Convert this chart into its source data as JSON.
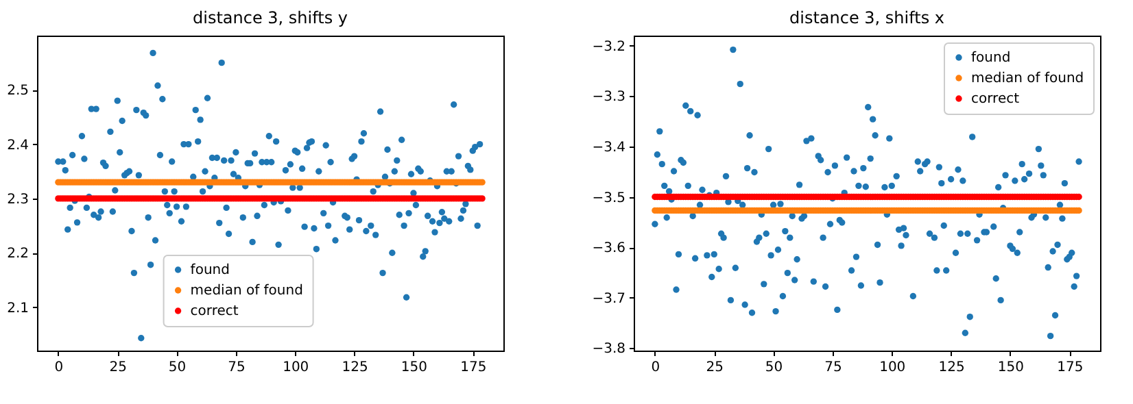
{
  "chart_data": [
    {
      "type": "scatter",
      "title": "distance 3, shifts y",
      "xlim": [
        -8.95,
        187.95
      ],
      "xticks": [
        0,
        25,
        50,
        75,
        100,
        125,
        150,
        175
      ],
      "ylim": [
        2.02,
        2.6
      ],
      "yticks": [
        2.1,
        2.2,
        2.3,
        2.4,
        2.5
      ],
      "grid": false,
      "legend": "bottom",
      "marker": "circle",
      "series": [
        {
          "name": "found",
          "color": "#1f77b4",
          "x": [
            0,
            2,
            3,
            4,
            5,
            6,
            7,
            8,
            10,
            11,
            12,
            13,
            14,
            15,
            16,
            17,
            18,
            19,
            20,
            22,
            23,
            24,
            25,
            26,
            27,
            28,
            29,
            30,
            31,
            32,
            33,
            34,
            35,
            36,
            37,
            38,
            39,
            40,
            41,
            42,
            43,
            44,
            45,
            46,
            47,
            48,
            49,
            50,
            52,
            53,
            54,
            55,
            57,
            58,
            59,
            60,
            61,
            62,
            63,
            64,
            65,
            66,
            67,
            68,
            69,
            70,
            71,
            72,
            73,
            74,
            75,
            76,
            78,
            79,
            80,
            81,
            82,
            83,
            84,
            85,
            86,
            87,
            88,
            89,
            90,
            91,
            92,
            93,
            94,
            96,
            97,
            98,
            99,
            100,
            101,
            102,
            103,
            104,
            105,
            106,
            107,
            108,
            109,
            110,
            112,
            113,
            114,
            115,
            116,
            117,
            121,
            122,
            123,
            124,
            125,
            126,
            127,
            128,
            129,
            130,
            132,
            133,
            134,
            135,
            136,
            137,
            138,
            139,
            140,
            141,
            142,
            143,
            144,
            145,
            146,
            147,
            148,
            149,
            150,
            151,
            152,
            153,
            154,
            155,
            156,
            157,
            158,
            159,
            160,
            161,
            162,
            163,
            164,
            165,
            166,
            167,
            168,
            169,
            170,
            171,
            172,
            173,
            174,
            175,
            176,
            177,
            178
          ],
          "values": [
            2.368,
            2.368,
            2.352,
            2.243,
            2.283,
            2.38,
            2.296,
            2.256,
            2.415,
            2.373,
            2.283,
            2.303,
            2.465,
            2.27,
            2.465,
            2.265,
            2.276,
            2.366,
            2.36,
            2.423,
            2.276,
            2.315,
            2.48,
            2.385,
            2.443,
            2.343,
            2.347,
            2.35,
            2.24,
            2.163,
            2.463,
            2.343,
            2.043,
            2.458,
            2.453,
            2.265,
            2.178,
            2.568,
            2.223,
            2.508,
            2.38,
            2.483,
            2.313,
            2.288,
            2.273,
            2.368,
            2.313,
            2.285,
            2.258,
            2.4,
            2.285,
            2.4,
            2.34,
            2.463,
            2.405,
            2.445,
            2.313,
            2.35,
            2.485,
            2.323,
            2.375,
            2.338,
            2.375,
            2.255,
            2.55,
            2.37,
            2.283,
            2.235,
            2.37,
            2.345,
            2.385,
            2.338,
            2.265,
            2.323,
            2.365,
            2.365,
            2.22,
            2.383,
            2.268,
            2.325,
            2.367,
            2.288,
            2.367,
            2.415,
            2.367,
            2.293,
            2.405,
            2.215,
            2.295,
            2.352,
            2.278,
            2.363,
            2.32,
            2.388,
            2.385,
            2.32,
            2.355,
            2.248,
            2.393,
            2.403,
            2.405,
            2.245,
            2.207,
            2.35,
            2.273,
            2.398,
            2.25,
            2.367,
            2.293,
            2.223,
            2.268,
            2.265,
            2.243,
            2.373,
            2.378,
            2.335,
            2.26,
            2.405,
            2.42,
            2.24,
            2.25,
            2.313,
            2.233,
            2.325,
            2.46,
            2.163,
            2.34,
            2.39,
            2.328,
            2.2,
            2.35,
            2.37,
            2.27,
            2.408,
            2.25,
            2.118,
            2.273,
            2.345,
            2.31,
            2.288,
            2.355,
            2.35,
            2.193,
            2.203,
            2.268,
            2.333,
            2.258,
            2.238,
            2.323,
            2.255,
            2.275,
            2.263,
            2.35,
            2.258,
            2.35,
            2.473,
            2.328,
            2.378,
            2.263,
            2.278,
            2.29,
            2.36,
            2.353,
            2.388,
            2.395,
            2.25,
            2.4
          ]
        },
        {
          "name": "median of found",
          "color": "#ff7f0e",
          "x": [
            0,
            1,
            2,
            3,
            4,
            5,
            6,
            7,
            8,
            9,
            10,
            11,
            12,
            13,
            14,
            15,
            16,
            17,
            18,
            19,
            20,
            21,
            22,
            23,
            24,
            25,
            26,
            27,
            28,
            29,
            30,
            31,
            32,
            33,
            34,
            35,
            36,
            37,
            38,
            39,
            40,
            41,
            42,
            43,
            44,
            45,
            46,
            47,
            48,
            49,
            50,
            51,
            52,
            53,
            54,
            55,
            56,
            57,
            58,
            59,
            60,
            61,
            62,
            63,
            64,
            65,
            66,
            67,
            68,
            69,
            70,
            71,
            72,
            73,
            74,
            75,
            76,
            77,
            78,
            79,
            80,
            81,
            82,
            83,
            84,
            85,
            86,
            87,
            88,
            89,
            90,
            91,
            92,
            93,
            94,
            95,
            96,
            97,
            98,
            99,
            100,
            101,
            102,
            103,
            104,
            105,
            106,
            107,
            108,
            109,
            110,
            111,
            112,
            113,
            114,
            115,
            116,
            117,
            118,
            119,
            120,
            121,
            122,
            123,
            124,
            125,
            126,
            127,
            128,
            129,
            130,
            131,
            132,
            133,
            134,
            135,
            136,
            137,
            138,
            139,
            140,
            141,
            142,
            143,
            144,
            145,
            146,
            147,
            148,
            149,
            150,
            151,
            152,
            153,
            154,
            155,
            156,
            157,
            158,
            159,
            160,
            161,
            162,
            163,
            164,
            165,
            166,
            167,
            168,
            169,
            170,
            171,
            172,
            173,
            174,
            175,
            176,
            177,
            178,
            179
          ],
          "values": [
            2.33,
            2.33,
            2.33,
            2.33,
            2.33,
            2.33,
            2.33,
            2.33,
            2.33,
            2.33,
            2.33,
            2.33,
            2.33,
            2.33,
            2.33,
            2.33,
            2.33,
            2.33,
            2.33,
            2.33,
            2.33,
            2.33,
            2.33,
            2.33,
            2.33,
            2.33,
            2.33,
            2.33,
            2.33,
            2.33,
            2.33,
            2.33,
            2.33,
            2.33,
            2.33,
            2.33,
            2.33,
            2.33,
            2.33,
            2.33,
            2.33,
            2.33,
            2.33,
            2.33,
            2.33,
            2.33,
            2.33,
            2.33,
            2.33,
            2.33,
            2.33,
            2.33,
            2.33,
            2.33,
            2.33,
            2.33,
            2.33,
            2.33,
            2.33,
            2.33,
            2.33,
            2.33,
            2.33,
            2.33,
            2.33,
            2.33,
            2.33,
            2.33,
            2.33,
            2.33,
            2.33,
            2.33,
            2.33,
            2.33,
            2.33,
            2.33,
            2.33,
            2.33,
            2.33,
            2.33,
            2.33,
            2.33,
            2.33,
            2.33,
            2.33,
            2.33,
            2.33,
            2.33,
            2.33,
            2.33,
            2.33,
            2.33,
            2.33,
            2.33,
            2.33,
            2.33,
            2.33,
            2.33,
            2.33,
            2.33,
            2.33,
            2.33,
            2.33,
            2.33,
            2.33,
            2.33,
            2.33,
            2.33,
            2.33,
            2.33,
            2.33,
            2.33,
            2.33,
            2.33,
            2.33,
            2.33,
            2.33,
            2.33,
            2.33,
            2.33,
            2.33,
            2.33,
            2.33,
            2.33,
            2.33,
            2.33,
            2.33,
            2.33,
            2.33,
            2.33,
            2.33,
            2.33,
            2.33,
            2.33,
            2.33,
            2.33,
            2.33,
            2.33,
            2.33,
            2.33,
            2.33,
            2.33,
            2.33,
            2.33,
            2.33,
            2.33,
            2.33,
            2.33,
            2.33,
            2.33,
            2.33,
            2.33,
            2.33,
            2.33,
            2.33,
            2.33,
            2.33,
            2.33,
            2.33,
            2.33,
            2.33,
            2.33,
            2.33,
            2.33,
            2.33,
            2.33,
            2.33,
            2.33,
            2.33,
            2.33,
            2.33,
            2.33,
            2.33,
            2.33,
            2.33,
            2.33,
            2.33,
            2.33,
            2.33,
            2.33
          ]
        },
        {
          "name": "correct",
          "color": "#ff0000",
          "x": [
            0,
            1,
            2,
            3,
            4,
            5,
            6,
            7,
            8,
            9,
            10,
            11,
            12,
            13,
            14,
            15,
            16,
            17,
            18,
            19,
            20,
            21,
            22,
            23,
            24,
            25,
            26,
            27,
            28,
            29,
            30,
            31,
            32,
            33,
            34,
            35,
            36,
            37,
            38,
            39,
            40,
            41,
            42,
            43,
            44,
            45,
            46,
            47,
            48,
            49,
            50,
            51,
            52,
            53,
            54,
            55,
            56,
            57,
            58,
            59,
            60,
            61,
            62,
            63,
            64,
            65,
            66,
            67,
            68,
            69,
            70,
            71,
            72,
            73,
            74,
            75,
            76,
            77,
            78,
            79,
            80,
            81,
            82,
            83,
            84,
            85,
            86,
            87,
            88,
            89,
            90,
            91,
            92,
            93,
            94,
            95,
            96,
            97,
            98,
            99,
            100,
            101,
            102,
            103,
            104,
            105,
            106,
            107,
            108,
            109,
            110,
            111,
            112,
            113,
            114,
            115,
            116,
            117,
            118,
            119,
            120,
            121,
            122,
            123,
            124,
            125,
            126,
            127,
            128,
            129,
            130,
            131,
            132,
            133,
            134,
            135,
            136,
            137,
            138,
            139,
            140,
            141,
            142,
            143,
            144,
            145,
            146,
            147,
            148,
            149,
            150,
            151,
            152,
            153,
            154,
            155,
            156,
            157,
            158,
            159,
            160,
            161,
            162,
            163,
            164,
            165,
            166,
            167,
            168,
            169,
            170,
            171,
            172,
            173,
            174,
            175,
            176,
            177,
            178,
            179
          ],
          "values": [
            2.3,
            2.3,
            2.3,
            2.3,
            2.3,
            2.3,
            2.3,
            2.3,
            2.3,
            2.3,
            2.3,
            2.3,
            2.3,
            2.3,
            2.3,
            2.3,
            2.3,
            2.3,
            2.3,
            2.3,
            2.3,
            2.3,
            2.3,
            2.3,
            2.3,
            2.3,
            2.3,
            2.3,
            2.3,
            2.3,
            2.3,
            2.3,
            2.3,
            2.3,
            2.3,
            2.3,
            2.3,
            2.3,
            2.3,
            2.3,
            2.3,
            2.3,
            2.3,
            2.3,
            2.3,
            2.3,
            2.3,
            2.3,
            2.3,
            2.3,
            2.3,
            2.3,
            2.3,
            2.3,
            2.3,
            2.3,
            2.3,
            2.3,
            2.3,
            2.3,
            2.3,
            2.3,
            2.3,
            2.3,
            2.3,
            2.3,
            2.3,
            2.3,
            2.3,
            2.3,
            2.3,
            2.3,
            2.3,
            2.3,
            2.3,
            2.3,
            2.3,
            2.3,
            2.3,
            2.3,
            2.3,
            2.3,
            2.3,
            2.3,
            2.3,
            2.3,
            2.3,
            2.3,
            2.3,
            2.3,
            2.3,
            2.3,
            2.3,
            2.3,
            2.3,
            2.3,
            2.3,
            2.3,
            2.3,
            2.3,
            2.3,
            2.3,
            2.3,
            2.3,
            2.3,
            2.3,
            2.3,
            2.3,
            2.3,
            2.3,
            2.3,
            2.3,
            2.3,
            2.3,
            2.3,
            2.3,
            2.3,
            2.3,
            2.3,
            2.3,
            2.3,
            2.3,
            2.3,
            2.3,
            2.3,
            2.3,
            2.3,
            2.3,
            2.3,
            2.3,
            2.3,
            2.3,
            2.3,
            2.3,
            2.3,
            2.3,
            2.3,
            2.3,
            2.3,
            2.3,
            2.3,
            2.3,
            2.3,
            2.3,
            2.3,
            2.3,
            2.3,
            2.3,
            2.3,
            2.3,
            2.3,
            2.3,
            2.3,
            2.3,
            2.3,
            2.3,
            2.3,
            2.3,
            2.3,
            2.3,
            2.3,
            2.3,
            2.3,
            2.3,
            2.3,
            2.3,
            2.3,
            2.3,
            2.3,
            2.3,
            2.3,
            2.3,
            2.3,
            2.3,
            2.3,
            2.3,
            2.3,
            2.3,
            2.3,
            2.3
          ]
        }
      ]
    },
    {
      "type": "scatter",
      "title": "distance 3, shifts x",
      "xlim": [
        -8.95,
        187.95
      ],
      "xticks": [
        0,
        25,
        50,
        75,
        100,
        125,
        150,
        175
      ],
      "ylim": [
        -3.805,
        -3.18
      ],
      "yticks": [
        -3.8,
        -3.7,
        -3.6,
        -3.5,
        -3.4,
        -3.3,
        -3.2
      ],
      "grid": false,
      "legend": "top right",
      "marker": "circle",
      "series": [
        {
          "name": "found",
          "color": "#1f77b4",
          "x": [
            0,
            1,
            2,
            3,
            4,
            5,
            6,
            7,
            8,
            9,
            10,
            11,
            12,
            13,
            14,
            15,
            16,
            17,
            18,
            19,
            20,
            22,
            23,
            24,
            25,
            26,
            27,
            28,
            29,
            30,
            31,
            32,
            33,
            34,
            35,
            36,
            37,
            38,
            39,
            40,
            41,
            42,
            43,
            44,
            45,
            46,
            47,
            48,
            49,
            50,
            51,
            52,
            53,
            54,
            55,
            56,
            57,
            58,
            59,
            60,
            61,
            62,
            63,
            64,
            66,
            67,
            69,
            70,
            71,
            72,
            73,
            74,
            75,
            76,
            77,
            78,
            79,
            80,
            81,
            83,
            84,
            85,
            86,
            87,
            88,
            89,
            90,
            91,
            92,
            93,
            94,
            95,
            97,
            98,
            99,
            100,
            102,
            103,
            104,
            105,
            106,
            109,
            111,
            112,
            114,
            115,
            116,
            118,
            119,
            120,
            121,
            122,
            123,
            125,
            127,
            128,
            129,
            130,
            131,
            132,
            133,
            134,
            136,
            137,
            139,
            140,
            143,
            144,
            145,
            146,
            147,
            148,
            150,
            151,
            152,
            153,
            154,
            155,
            156,
            158,
            159,
            160,
            162,
            163,
            164,
            165,
            166,
            167,
            168,
            169,
            170,
            171,
            172,
            173,
            174,
            175,
            176,
            177,
            178,
            179
          ],
          "values": [
            -3.554,
            -3.416,
            -3.37,
            -3.435,
            -3.478,
            -3.541,
            -3.489,
            -3.505,
            -3.449,
            -3.684,
            -3.614,
            -3.427,
            -3.432,
            -3.319,
            -3.478,
            -3.33,
            -3.538,
            -3.622,
            -3.338,
            -3.516,
            -3.486,
            -3.616,
            -3.497,
            -3.659,
            -3.614,
            -3.492,
            -3.643,
            -3.573,
            -3.581,
            -3.459,
            -3.51,
            -3.705,
            -3.208,
            -3.641,
            -3.508,
            -3.276,
            -3.516,
            -3.714,
            -3.443,
            -3.378,
            -3.73,
            -3.451,
            -3.589,
            -3.581,
            -3.535,
            -3.673,
            -3.573,
            -3.405,
            -3.616,
            -3.516,
            -3.727,
            -3.605,
            -3.514,
            -3.697,
            -3.568,
            -3.651,
            -3.581,
            -3.538,
            -3.665,
            -3.624,
            -3.476,
            -3.543,
            -3.538,
            -3.389,
            -3.384,
            -3.668,
            -3.419,
            -3.427,
            -3.581,
            -3.678,
            -3.451,
            -3.554,
            -3.503,
            -3.438,
            -3.724,
            -3.546,
            -3.551,
            -3.492,
            -3.422,
            -3.646,
            -3.449,
            -3.619,
            -3.478,
            -3.676,
            -3.443,
            -3.48,
            -3.322,
            -3.424,
            -3.346,
            -3.378,
            -3.595,
            -3.67,
            -3.481,
            -3.535,
            -3.384,
            -3.478,
            -3.459,
            -3.565,
            -3.597,
            -3.562,
            -3.576,
            -3.697,
            -3.43,
            -3.449,
            -3.435,
            -3.43,
            -3.573,
            -3.581,
            -3.646,
            -3.441,
            -3.473,
            -3.557,
            -3.646,
            -3.465,
            -3.611,
            -3.446,
            -3.573,
            -3.468,
            -3.77,
            -3.573,
            -3.738,
            -3.381,
            -3.586,
            -3.535,
            -3.57,
            -3.57,
            -3.559,
            -3.662,
            -3.481,
            -3.705,
            -3.522,
            -3.457,
            -3.597,
            -3.603,
            -3.468,
            -3.611,
            -3.57,
            -3.435,
            -3.465,
            -3.454,
            -3.541,
            -3.535,
            -3.405,
            -3.438,
            -3.457,
            -3.541,
            -3.64,
            -3.776,
            -3.608,
            -3.735,
            -3.595,
            -3.516,
            -3.543,
            -3.473,
            -3.624,
            -3.619,
            -3.611,
            -3.678,
            -3.657,
            -3.43
          ]
        },
        {
          "name": "median of found",
          "color": "#ff7f0e",
          "x": [
            0,
            1,
            2,
            3,
            4,
            5,
            6,
            7,
            8,
            9,
            10,
            11,
            12,
            13,
            14,
            15,
            16,
            17,
            18,
            19,
            20,
            21,
            22,
            23,
            24,
            25,
            26,
            27,
            28,
            29,
            30,
            31,
            32,
            33,
            34,
            35,
            36,
            37,
            38,
            39,
            40,
            41,
            42,
            43,
            44,
            45,
            46,
            47,
            48,
            49,
            50,
            51,
            52,
            53,
            54,
            55,
            56,
            57,
            58,
            59,
            60,
            61,
            62,
            63,
            64,
            65,
            66,
            67,
            68,
            69,
            70,
            71,
            72,
            73,
            74,
            75,
            76,
            77,
            78,
            79,
            80,
            81,
            82,
            83,
            84,
            85,
            86,
            87,
            88,
            89,
            90,
            91,
            92,
            93,
            94,
            95,
            96,
            97,
            98,
            99,
            100,
            101,
            102,
            103,
            104,
            105,
            106,
            107,
            108,
            109,
            110,
            111,
            112,
            113,
            114,
            115,
            116,
            117,
            118,
            119,
            120,
            121,
            122,
            123,
            124,
            125,
            126,
            127,
            128,
            129,
            130,
            131,
            132,
            133,
            134,
            135,
            136,
            137,
            138,
            139,
            140,
            141,
            142,
            143,
            144,
            145,
            146,
            147,
            148,
            149,
            150,
            151,
            152,
            153,
            154,
            155,
            156,
            157,
            158,
            159,
            160,
            161,
            162,
            163,
            164,
            165,
            166,
            167,
            168,
            169,
            170,
            171,
            172,
            173,
            174,
            175,
            176,
            177,
            178,
            179
          ],
          "values": [
            -3.527,
            -3.527,
            -3.527,
            -3.527,
            -3.527,
            -3.527,
            -3.527,
            -3.527,
            -3.527,
            -3.527,
            -3.527,
            -3.527,
            -3.527,
            -3.527,
            -3.527,
            -3.527,
            -3.527,
            -3.527,
            -3.527,
            -3.527,
            -3.527,
            -3.527,
            -3.527,
            -3.527,
            -3.527,
            -3.527,
            -3.527,
            -3.527,
            -3.527,
            -3.527,
            -3.527,
            -3.527,
            -3.527,
            -3.527,
            -3.527,
            -3.527,
            -3.527,
            -3.527,
            -3.527,
            -3.527,
            -3.527,
            -3.527,
            -3.527,
            -3.527,
            -3.527,
            -3.527,
            -3.527,
            -3.527,
            -3.527,
            -3.527,
            -3.527,
            -3.527,
            -3.527,
            -3.527,
            -3.527,
            -3.527,
            -3.527,
            -3.527,
            -3.527,
            -3.527,
            -3.527,
            -3.527,
            -3.527,
            -3.527,
            -3.527,
            -3.527,
            -3.527,
            -3.527,
            -3.527,
            -3.527,
            -3.527,
            -3.527,
            -3.527,
            -3.527,
            -3.527,
            -3.527,
            -3.527,
            -3.527,
            -3.527,
            -3.527,
            -3.527,
            -3.527,
            -3.527,
            -3.527,
            -3.527,
            -3.527,
            -3.527,
            -3.527,
            -3.527,
            -3.527,
            -3.527,
            -3.527,
            -3.527,
            -3.527,
            -3.527,
            -3.527,
            -3.527,
            -3.527,
            -3.527,
            -3.527,
            -3.527,
            -3.527,
            -3.527,
            -3.527,
            -3.527,
            -3.527,
            -3.527,
            -3.527,
            -3.527,
            -3.527,
            -3.527,
            -3.527,
            -3.527,
            -3.527,
            -3.527,
            -3.527,
            -3.527,
            -3.527,
            -3.527,
            -3.527,
            -3.527,
            -3.527,
            -3.527,
            -3.527,
            -3.527,
            -3.527,
            -3.527,
            -3.527,
            -3.527,
            -3.527,
            -3.527,
            -3.527,
            -3.527,
            -3.527,
            -3.527,
            -3.527,
            -3.527,
            -3.527,
            -3.527,
            -3.527,
            -3.527,
            -3.527,
            -3.527,
            -3.527,
            -3.527,
            -3.527,
            -3.527,
            -3.527,
            -3.527,
            -3.527,
            -3.527,
            -3.527,
            -3.527,
            -3.527,
            -3.527,
            -3.527,
            -3.527,
            -3.527,
            -3.527,
            -3.527,
            -3.527,
            -3.527,
            -3.527,
            -3.527,
            -3.527,
            -3.527,
            -3.527,
            -3.527,
            -3.527,
            -3.527,
            -3.527,
            -3.527,
            -3.527,
            -3.527,
            -3.527,
            -3.527,
            -3.527,
            -3.527,
            -3.527,
            -3.527
          ]
        },
        {
          "name": "correct",
          "color": "#ff0000",
          "x": [
            0,
            1,
            2,
            3,
            4,
            5,
            6,
            7,
            8,
            9,
            10,
            11,
            12,
            13,
            14,
            15,
            16,
            17,
            18,
            19,
            20,
            21,
            22,
            23,
            24,
            25,
            26,
            27,
            28,
            29,
            30,
            31,
            32,
            33,
            34,
            35,
            36,
            37,
            38,
            39,
            40,
            41,
            42,
            43,
            44,
            45,
            46,
            47,
            48,
            49,
            50,
            51,
            52,
            53,
            54,
            55,
            56,
            57,
            58,
            59,
            60,
            61,
            62,
            63,
            64,
            65,
            66,
            67,
            68,
            69,
            70,
            71,
            72,
            73,
            74,
            75,
            76,
            77,
            78,
            79,
            80,
            81,
            82,
            83,
            84,
            85,
            86,
            87,
            88,
            89,
            90,
            91,
            92,
            93,
            94,
            95,
            96,
            97,
            98,
            99,
            100,
            101,
            102,
            103,
            104,
            105,
            106,
            107,
            108,
            109,
            110,
            111,
            112,
            113,
            114,
            115,
            116,
            117,
            118,
            119,
            120,
            121,
            122,
            123,
            124,
            125,
            126,
            127,
            128,
            129,
            130,
            131,
            132,
            133,
            134,
            135,
            136,
            137,
            138,
            139,
            140,
            141,
            142,
            143,
            144,
            145,
            146,
            147,
            148,
            149,
            150,
            151,
            152,
            153,
            154,
            155,
            156,
            157,
            158,
            159,
            160,
            161,
            162,
            163,
            164,
            165,
            166,
            167,
            168,
            169,
            170,
            171,
            172,
            173,
            174,
            175,
            176,
            177,
            178,
            179
          ],
          "values": [
            -3.5,
            -3.5,
            -3.5,
            -3.5,
            -3.5,
            -3.5,
            -3.5,
            -3.5,
            -3.5,
            -3.5,
            -3.5,
            -3.5,
            -3.5,
            -3.5,
            -3.5,
            -3.5,
            -3.5,
            -3.5,
            -3.5,
            -3.5,
            -3.5,
            -3.5,
            -3.5,
            -3.5,
            -3.5,
            -3.5,
            -3.5,
            -3.5,
            -3.5,
            -3.5,
            -3.5,
            -3.5,
            -3.5,
            -3.5,
            -3.5,
            -3.5,
            -3.5,
            -3.5,
            -3.5,
            -3.5,
            -3.5,
            -3.5,
            -3.5,
            -3.5,
            -3.5,
            -3.5,
            -3.5,
            -3.5,
            -3.5,
            -3.5,
            -3.5,
            -3.5,
            -3.5,
            -3.5,
            -3.5,
            -3.5,
            -3.5,
            -3.5,
            -3.5,
            -3.5,
            -3.5,
            -3.5,
            -3.5,
            -3.5,
            -3.5,
            -3.5,
            -3.5,
            -3.5,
            -3.5,
            -3.5,
            -3.5,
            -3.5,
            -3.5,
            -3.5,
            -3.5,
            -3.5,
            -3.5,
            -3.5,
            -3.5,
            -3.5,
            -3.5,
            -3.5,
            -3.5,
            -3.5,
            -3.5,
            -3.5,
            -3.5,
            -3.5,
            -3.5,
            -3.5,
            -3.5,
            -3.5,
            -3.5,
            -3.5,
            -3.5,
            -3.5,
            -3.5,
            -3.5,
            -3.5,
            -3.5,
            -3.5,
            -3.5,
            -3.5,
            -3.5,
            -3.5,
            -3.5,
            -3.5,
            -3.5,
            -3.5,
            -3.5,
            -3.5,
            -3.5,
            -3.5,
            -3.5,
            -3.5,
            -3.5,
            -3.5,
            -3.5,
            -3.5,
            -3.5,
            -3.5,
            -3.5,
            -3.5,
            -3.5,
            -3.5,
            -3.5,
            -3.5,
            -3.5,
            -3.5,
            -3.5,
            -3.5,
            -3.5,
            -3.5,
            -3.5,
            -3.5,
            -3.5,
            -3.5,
            -3.5,
            -3.5,
            -3.5,
            -3.5,
            -3.5,
            -3.5,
            -3.5,
            -3.5,
            -3.5,
            -3.5,
            -3.5,
            -3.5,
            -3.5,
            -3.5,
            -3.5,
            -3.5,
            -3.5,
            -3.5,
            -3.5,
            -3.5,
            -3.5,
            -3.5,
            -3.5,
            -3.5,
            -3.5,
            -3.5,
            -3.5,
            -3.5,
            -3.5,
            -3.5,
            -3.5,
            -3.5,
            -3.5,
            -3.5,
            -3.5,
            -3.5,
            -3.5,
            -3.5,
            -3.5,
            -3.5,
            -3.5,
            -3.5,
            -3.5
          ]
        }
      ]
    }
  ]
}
